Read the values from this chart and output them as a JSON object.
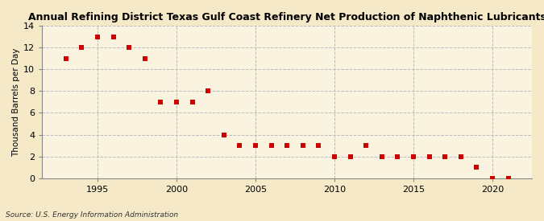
{
  "title": "Annual Refining District Texas Gulf Coast Refinery Net Production of Naphthenic Lubricants",
  "ylabel": "Thousand Barrels per Day",
  "source": "Source: U.S. Energy Information Administration",
  "background_color": "#f5e9c8",
  "plot_background_color": "#faf3e0",
  "marker_color": "#cc0000",
  "marker": "s",
  "marker_size": 16,
  "xlim": [
    1991.5,
    2022.5
  ],
  "ylim": [
    0,
    14
  ],
  "yticks": [
    0,
    2,
    4,
    6,
    8,
    10,
    12,
    14
  ],
  "xticks": [
    1995,
    2000,
    2005,
    2010,
    2015,
    2020
  ],
  "grid_color": "#bbbbbb",
  "years": [
    1993,
    1994,
    1995,
    1996,
    1997,
    1998,
    1999,
    2000,
    2001,
    2002,
    2003,
    2004,
    2005,
    2006,
    2007,
    2008,
    2009,
    2010,
    2011,
    2012,
    2013,
    2014,
    2015,
    2016,
    2017,
    2018,
    2019,
    2020,
    2021
  ],
  "values": [
    11,
    12,
    13,
    13,
    12,
    11,
    7,
    7,
    7,
    8,
    4,
    3,
    3,
    3,
    3,
    3,
    3,
    2,
    2,
    3,
    2,
    2,
    2,
    2,
    2,
    2,
    1,
    0,
    0
  ]
}
